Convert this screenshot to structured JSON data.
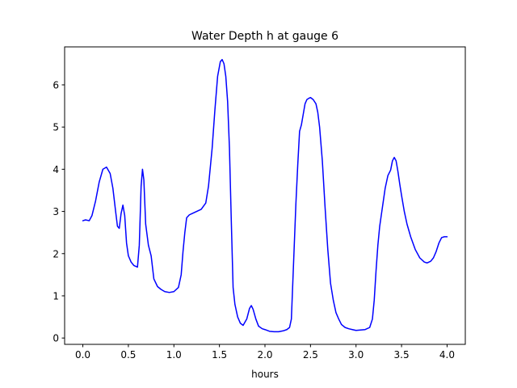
{
  "chart_data": {
    "type": "line",
    "title": "Water Depth h at gauge 6",
    "xlabel": "hours",
    "ylabel": "",
    "xlim": [
      -0.2,
      4.2
    ],
    "ylim": [
      -0.15,
      6.9
    ],
    "xticks": [
      0.0,
      0.5,
      1.0,
      1.5,
      2.0,
      2.5,
      3.0,
      3.5,
      4.0
    ],
    "xtick_labels": [
      "0.0",
      "0.5",
      "1.0",
      "1.5",
      "2.0",
      "2.5",
      "3.0",
      "3.5",
      "4.0"
    ],
    "yticks": [
      0,
      1,
      2,
      3,
      4,
      5,
      6
    ],
    "ytick_labels": [
      "0",
      "1",
      "2",
      "3",
      "4",
      "5",
      "6"
    ],
    "grid": false,
    "legend": false,
    "series": [
      {
        "color": "#0000ff",
        "x": [
          0.0,
          0.03,
          0.07,
          0.1,
          0.14,
          0.18,
          0.22,
          0.26,
          0.3,
          0.33,
          0.36,
          0.38,
          0.4,
          0.42,
          0.44,
          0.46,
          0.48,
          0.5,
          0.53,
          0.56,
          0.6,
          0.62,
          0.64,
          0.655,
          0.67,
          0.69,
          0.72,
          0.75,
          0.78,
          0.82,
          0.86,
          0.9,
          0.95,
          1.0,
          1.05,
          1.08,
          1.1,
          1.12,
          1.14,
          1.17,
          1.2,
          1.25,
          1.3,
          1.35,
          1.38,
          1.42,
          1.45,
          1.48,
          1.51,
          1.53,
          1.55,
          1.57,
          1.59,
          1.61,
          1.63,
          1.65,
          1.67,
          1.7,
          1.73,
          1.76,
          1.8,
          1.83,
          1.85,
          1.87,
          1.9,
          1.93,
          1.97,
          2.0,
          2.05,
          2.1,
          2.15,
          2.2,
          2.24,
          2.27,
          2.29,
          2.3,
          2.32,
          2.34,
          2.36,
          2.38,
          2.4,
          2.42,
          2.44,
          2.46,
          2.48,
          2.5,
          2.53,
          2.56,
          2.58,
          2.6,
          2.63,
          2.66,
          2.69,
          2.72,
          2.75,
          2.78,
          2.81,
          2.84,
          2.88,
          2.92,
          2.96,
          3.0,
          3.05,
          3.1,
          3.15,
          3.18,
          3.2,
          3.22,
          3.24,
          3.26,
          3.28,
          3.3,
          3.32,
          3.35,
          3.38,
          3.4,
          3.42,
          3.44,
          3.46,
          3.48,
          3.5,
          3.53,
          3.56,
          3.6,
          3.65,
          3.7,
          3.75,
          3.78,
          3.82,
          3.85,
          3.88,
          3.91,
          3.94,
          3.97,
          4.0
        ],
        "y": [
          2.78,
          2.8,
          2.78,
          2.9,
          3.25,
          3.7,
          4.0,
          4.05,
          3.9,
          3.55,
          3.0,
          2.65,
          2.6,
          2.95,
          3.15,
          2.9,
          2.25,
          1.95,
          1.8,
          1.72,
          1.68,
          2.2,
          3.6,
          4.0,
          3.75,
          2.7,
          2.2,
          1.95,
          1.4,
          1.22,
          1.15,
          1.1,
          1.08,
          1.1,
          1.2,
          1.5,
          2.05,
          2.5,
          2.85,
          2.92,
          2.95,
          3.0,
          3.05,
          3.2,
          3.6,
          4.5,
          5.4,
          6.2,
          6.55,
          6.6,
          6.5,
          6.2,
          5.6,
          4.5,
          2.8,
          1.2,
          0.8,
          0.5,
          0.35,
          0.3,
          0.45,
          0.7,
          0.77,
          0.68,
          0.45,
          0.28,
          0.22,
          0.2,
          0.16,
          0.15,
          0.15,
          0.17,
          0.2,
          0.25,
          0.45,
          1.0,
          2.1,
          3.2,
          4.1,
          4.9,
          5.05,
          5.3,
          5.55,
          5.65,
          5.68,
          5.7,
          5.65,
          5.55,
          5.35,
          5.0,
          4.2,
          3.1,
          2.1,
          1.3,
          0.9,
          0.6,
          0.45,
          0.32,
          0.25,
          0.22,
          0.2,
          0.18,
          0.19,
          0.2,
          0.25,
          0.45,
          0.9,
          1.6,
          2.2,
          2.65,
          2.95,
          3.25,
          3.55,
          3.85,
          3.98,
          4.2,
          4.28,
          4.2,
          3.95,
          3.65,
          3.38,
          3.0,
          2.7,
          2.4,
          2.1,
          1.9,
          1.8,
          1.78,
          1.82,
          1.9,
          2.05,
          2.25,
          2.38,
          2.4,
          2.4
        ]
      }
    ]
  }
}
